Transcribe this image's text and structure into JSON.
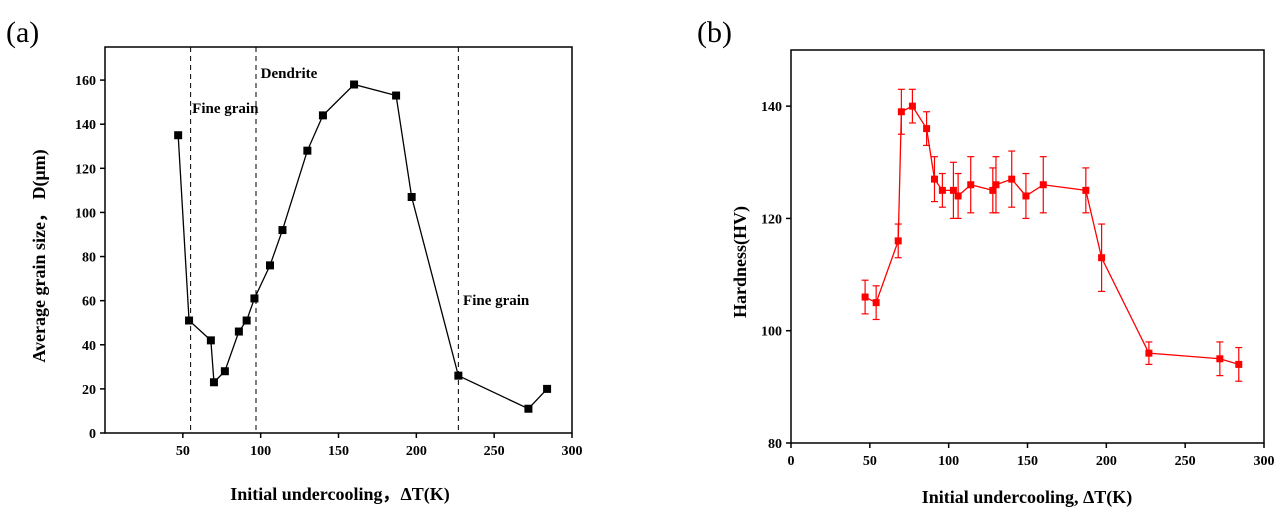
{
  "chart_data": [
    {
      "type": "line",
      "panel_label": "(a)",
      "xlabel": "Initial  undercooling，ΔT(K)",
      "ylabel": "Average grain size，  D(μm)",
      "xlim": [
        0,
        300
      ],
      "ylim": [
        0,
        175
      ],
      "xticks": [
        50,
        100,
        150,
        200,
        250,
        300
      ],
      "yticks": [
        0,
        20,
        40,
        60,
        80,
        100,
        120,
        140,
        160
      ],
      "grid": false,
      "color": "#000000",
      "marker": "square",
      "x": [
        47,
        54,
        68,
        70,
        77,
        86,
        91,
        96,
        106,
        114,
        130,
        140,
        160,
        187,
        197,
        227,
        272,
        284
      ],
      "y": [
        135,
        51,
        42,
        23,
        28,
        46,
        51,
        61,
        76,
        92,
        128,
        144,
        158,
        153,
        107,
        26,
        11,
        20
      ],
      "vlines": [
        55,
        97,
        227
      ],
      "annotations": [
        {
          "text": "Fine grain",
          "x": 56,
          "y": 145
        },
        {
          "text": "Dendrite",
          "x": 100,
          "y": 161
        },
        {
          "text": "Fine grain",
          "x": 230,
          "y": 58
        }
      ]
    },
    {
      "type": "line",
      "panel_label": "(b)",
      "xlabel": "Initial undercooling, ΔT(K)",
      "ylabel": "Hardness(HV)",
      "xlim": [
        0,
        300
      ],
      "ylim": [
        80,
        150
      ],
      "xticks": [
        0,
        50,
        100,
        150,
        200,
        250,
        300
      ],
      "yticks": [
        80,
        100,
        120,
        140
      ],
      "grid": false,
      "color": "#ff0000",
      "marker": "square",
      "x": [
        47,
        54,
        68,
        70,
        77,
        86,
        91,
        96,
        103,
        106,
        114,
        128,
        130,
        140,
        149,
        160,
        187,
        197,
        227,
        272,
        284
      ],
      "y": [
        106,
        105,
        116,
        139,
        140,
        136,
        127,
        125,
        125,
        124,
        126,
        125,
        126,
        127,
        124,
        126,
        125,
        113,
        96,
        95,
        94
      ],
      "err_high": [
        109,
        108,
        119,
        143,
        143,
        139,
        131,
        128,
        130,
        128,
        131,
        129,
        131,
        132,
        128,
        131,
        129,
        119,
        98,
        98,
        97
      ],
      "err_low": [
        103,
        102,
        113,
        135,
        137,
        133,
        123,
        122,
        120,
        120,
        121,
        121,
        121,
        122,
        120,
        121,
        121,
        107,
        94,
        92,
        91
      ]
    }
  ]
}
